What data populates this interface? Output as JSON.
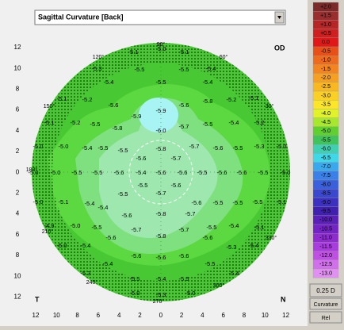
{
  "view_selector": {
    "label": "Sagittal Curvature [Back]"
  },
  "map": {
    "eye": "OD",
    "left_label": "T",
    "right_label": "N",
    "x_axis": [
      "12",
      "10",
      "8",
      "6",
      "4",
      "2",
      "0",
      "2",
      "4",
      "6",
      "8",
      "10",
      "12"
    ],
    "y_axis": [
      "12",
      "10",
      "8",
      "6",
      "4",
      "2",
      "0",
      "2",
      "4",
      "6",
      "8",
      "10",
      "12"
    ],
    "angles": [
      "90°",
      "60°",
      "120°",
      "30°",
      "150°",
      "180°",
      "210°",
      "330°",
      "240°",
      "300°",
      "270°"
    ],
    "readings": [
      "-5.1",
      "-5.0",
      "-5.1",
      "-5.3",
      "-5.5",
      "-5.5",
      "-5.4",
      "-5.4",
      "-5.5",
      "-5.4",
      "-5.1",
      "-5.2",
      "-5.2",
      "-5.1",
      "-5.6",
      "-5.9",
      "-5.6",
      "-5.8",
      "-5.1",
      "-5.2",
      "-5.5",
      "-5.8",
      "-5.9",
      "-5.7",
      "-5.5",
      "-5.4",
      "-5.2",
      "-6.0",
      "-5.0",
      "-5.0",
      "-5.4",
      "-5.5",
      "-5.5",
      "-5.8",
      "-5.7",
      "-5.6",
      "-5.5",
      "-5.3",
      "-5.0",
      "-5.6",
      "-5.7",
      "-5.0",
      "-5.0",
      "-5.5",
      "-5.5",
      "-5.6",
      "-5.4",
      "-5.6",
      "-5.6",
      "-5.5",
      "-5.6",
      "-5.6",
      "-5.5",
      "-5.0",
      "-5.5",
      "-5.6",
      "-5.5",
      "-5.7",
      "-5.0",
      "-5.1",
      "-5.4",
      "-5.4",
      "-5.6",
      "-5.5",
      "-5.5",
      "-5.5",
      "-5.1",
      "-5.8",
      "-5.7",
      "-5.6",
      "-4.9",
      "-5.0",
      "-5.5",
      "-5.5",
      "-5.4",
      "-5.1",
      "-5.7",
      "-5.7",
      "-5.8",
      "-5.6",
      "-5.6",
      "-5.0",
      "-5.4",
      "-5.3",
      "-5.4",
      "-5.6",
      "-5.6",
      "-5.6",
      "-5.4",
      "-5.5",
      "-5.3",
      "-5.4",
      "-5.5",
      "-5.4",
      "-5.5",
      "-5.0",
      "-5.3",
      "-5.0"
    ]
  },
  "scale": {
    "steps": [
      {
        "label": "+2.0",
        "color": "#7b2a2a"
      },
      {
        "label": "+1.5",
        "color": "#9a2e2e"
      },
      {
        "label": "+1.0",
        "color": "#b52727"
      },
      {
        "label": "+0.5",
        "color": "#cf1f1f"
      },
      {
        "label": "0.0",
        "color": "#e01818"
      },
      {
        "label": "-0.5",
        "color": "#e8501a"
      },
      {
        "label": "-1.0",
        "color": "#ee6a1c"
      },
      {
        "label": "-1.5",
        "color": "#f2851f"
      },
      {
        "label": "-2.0",
        "color": "#f5a020"
      },
      {
        "label": "-2.5",
        "color": "#f8b822"
      },
      {
        "label": "-3.0",
        "color": "#fbd024"
      },
      {
        "label": "-3.5",
        "color": "#fde628"
      },
      {
        "label": "-4.0",
        "color": "#e2f22a"
      },
      {
        "label": "-4.5",
        "color": "#a8e82c"
      },
      {
        "label": "-5.0",
        "color": "#5fd030"
      },
      {
        "label": "-5.5",
        "color": "#3fc35a"
      },
      {
        "label": "-6.0",
        "color": "#3ed0b0"
      },
      {
        "label": "-6.5",
        "color": "#40d8e8"
      },
      {
        "label": "-7.0",
        "color": "#3aa8ec"
      },
      {
        "label": "-7.5",
        "color": "#3a80e6"
      },
      {
        "label": "-8.0",
        "color": "#3a60dc"
      },
      {
        "label": "-8.5",
        "color": "#3a48d0"
      },
      {
        "label": "-9.0",
        "color": "#3c30c0"
      },
      {
        "label": "-9.5",
        "color": "#4020b0"
      },
      {
        "label": "-10.0",
        "color": "#5a20b8"
      },
      {
        "label": "-10.5",
        "color": "#7424c4"
      },
      {
        "label": "-11.0",
        "color": "#8e2cd0"
      },
      {
        "label": "-11.5",
        "color": "#a83cdc"
      },
      {
        "label": "-12.0",
        "color": "#c050e4"
      },
      {
        "label": "-12.5",
        "color": "#d070ea"
      },
      {
        "label": "-13.0",
        "color": "#e090f0"
      }
    ],
    "step_label": "0.25 D",
    "mode_button": "Curvature",
    "rel_button": "Rel"
  }
}
